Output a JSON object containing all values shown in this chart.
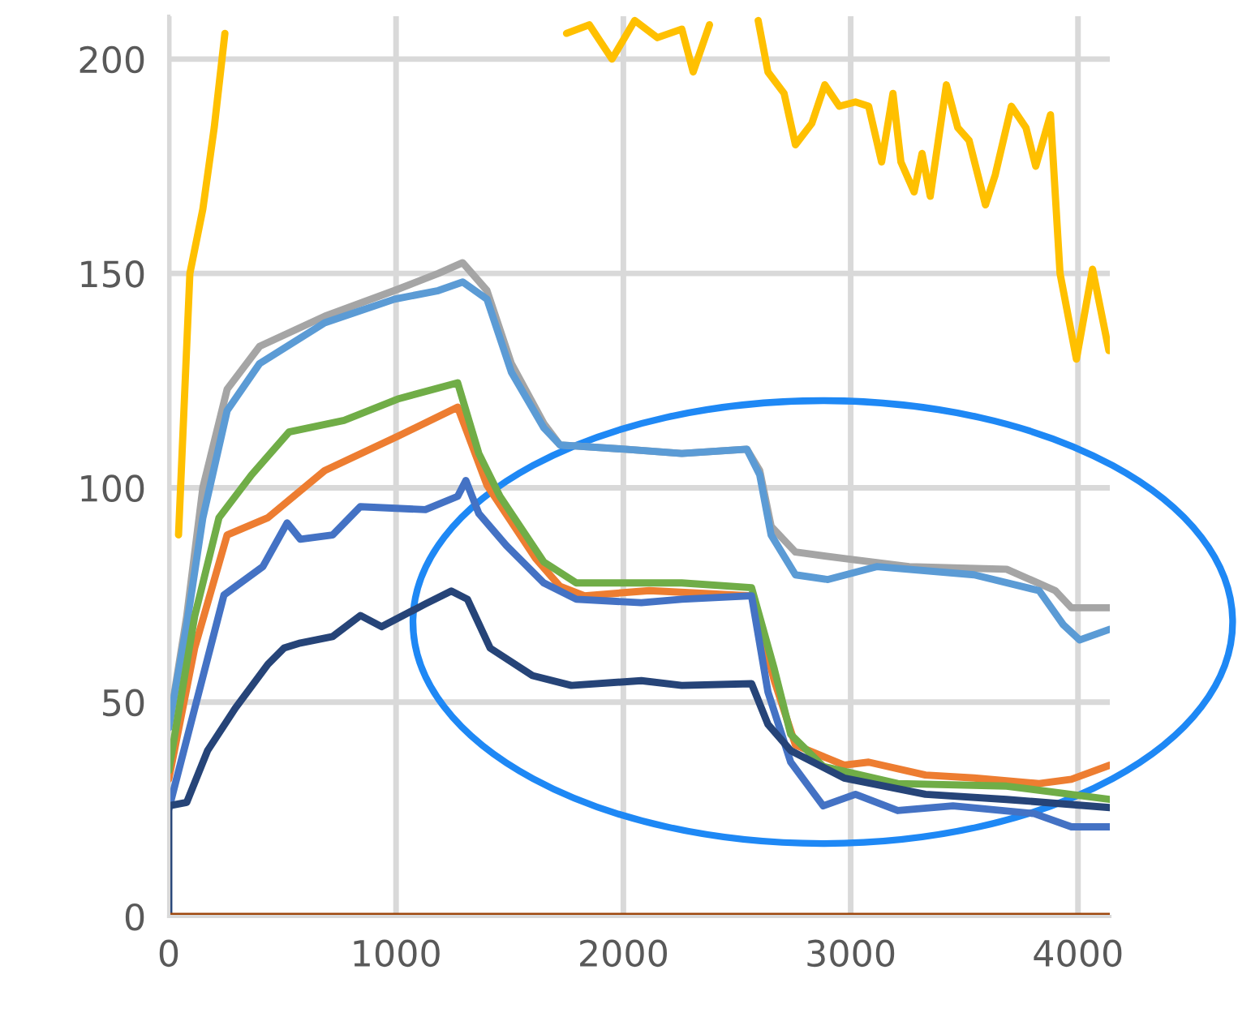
{
  "chart_data": {
    "type": "line",
    "xlim": [
      0,
      4140
    ],
    "ylim": [
      0,
      210
    ],
    "xticks": [
      0,
      1000,
      2000,
      3000,
      4000
    ],
    "yticks": [
      0,
      50,
      100,
      150,
      200
    ],
    "grid": true,
    "legend": false,
    "marker": "none",
    "line_style": "solid",
    "series": [
      {
        "color": "#ffc000",
        "x": [
          43,
          93,
          150,
          200,
          247,
          1000,
          1750,
          1850,
          1950,
          2050,
          2150,
          2257,
          2307,
          2379,
          2493,
          2593,
          2636,
          2707,
          2757,
          2829,
          2886,
          2950,
          3021,
          3079,
          3136,
          3186,
          3221,
          3279,
          3314,
          3350,
          3421,
          3471,
          3521,
          3593,
          3636,
          3707,
          3771,
          3814,
          3879,
          3921,
          3993,
          4064,
          4136
        ],
        "values": [
          89,
          150,
          165,
          184,
          206,
          null,
          206,
          208,
          200,
          209,
          205,
          207,
          197,
          208,
          null,
          209,
          197,
          192,
          180,
          185,
          194,
          189,
          190,
          189,
          176,
          192,
          176,
          169,
          178,
          168,
          194,
          184,
          181,
          166,
          173,
          189,
          184,
          175,
          187,
          150,
          130,
          151,
          132
        ]
      },
      {
        "color": "#a5a5a5",
        "x": [
          0,
          79,
          150,
          257,
          400,
          686,
          993,
          1186,
          1293,
          1400,
          1507,
          1650,
          1721,
          2007,
          2257,
          2543,
          2600,
          2650,
          2757,
          2971,
          3257,
          3686,
          3900,
          3971,
          4140
        ],
        "values": [
          44,
          70,
          100,
          123,
          133,
          140,
          146,
          150,
          152.5,
          146,
          129,
          115,
          110,
          109,
          108,
          109,
          104,
          91,
          85,
          83.5,
          81.6,
          81,
          76,
          72,
          72
        ]
      },
      {
        "color": "#5b9bd5",
        "x": [
          0,
          79,
          150,
          257,
          400,
          686,
          993,
          1186,
          1293,
          1400,
          1507,
          1650,
          1721,
          2007,
          2257,
          2543,
          2600,
          2650,
          2757,
          2900,
          3114,
          3543,
          3829,
          3936,
          4007,
          4140
        ],
        "values": [
          44,
          68,
          93,
          118,
          129,
          138.5,
          144,
          146,
          148,
          144,
          127,
          114,
          110,
          109,
          108,
          109,
          103,
          89,
          79.7,
          78.6,
          81.6,
          79.7,
          76,
          68,
          64.5,
          67
        ]
      },
      {
        "color": "#ed7d31",
        "x": [
          0,
          114,
          257,
          436,
          686,
          1007,
          1271,
          1400,
          1614,
          1721,
          1829,
          2114,
          2564,
          2664,
          2757,
          2971,
          3079,
          3329,
          3543,
          3829,
          3971,
          4140
        ],
        "values": [
          32,
          62.6,
          89,
          93,
          104,
          112,
          118.8,
          100.6,
          83.5,
          77,
          74.8,
          76,
          74.8,
          55,
          40,
          35.3,
          36,
          33,
          32.3,
          31,
          32,
          35.3
        ]
      },
      {
        "color": "#70ad47",
        "x": [
          0,
          114,
          221,
          364,
          529,
          771,
          1007,
          1271,
          1364,
          1457,
          1650,
          1793,
          2079,
          2257,
          2564,
          2664,
          2736,
          2879,
          3207,
          3686,
          4140
        ],
        "values": [
          34,
          70,
          93,
          103,
          113,
          115.7,
          120.7,
          124.5,
          108,
          98,
          82.7,
          77.8,
          77.8,
          77.8,
          76.7,
          57.7,
          42.5,
          35,
          31,
          30.4,
          27.3
        ]
      },
      {
        "color": "#4472c4",
        "x": [
          0,
          29,
          243,
          414,
          521,
          579,
          721,
          843,
          1129,
          1271,
          1307,
          1364,
          1486,
          1650,
          1793,
          2079,
          2257,
          2564,
          2636,
          2736,
          2879,
          3021,
          3207,
          3450,
          3807,
          3971,
          4140
        ],
        "values": [
          25,
          31,
          75,
          81.6,
          91.8,
          88,
          89,
          95.6,
          94.9,
          98,
          101.7,
          94,
          86.5,
          77.8,
          74,
          73.2,
          74,
          74.8,
          52.4,
          36,
          25.8,
          28.5,
          24.7,
          25.8,
          24,
          20.9,
          20.9
        ]
      },
      {
        "color": "#264478",
        "x": [
          0,
          0,
          79,
          171,
          293,
          436,
          507,
          579,
          721,
          843,
          936,
          1129,
          1243,
          1314,
          1414,
          1600,
          1771,
          2079,
          2257,
          2564,
          2636,
          2736,
          2971,
          3329,
          3686,
          4140
        ],
        "values": [
          0,
          25.8,
          26.6,
          38.7,
          48.6,
          58.8,
          62.6,
          63.8,
          65.3,
          70.2,
          67.6,
          72.9,
          75.9,
          74,
          62.6,
          56.2,
          53.9,
          55,
          53.9,
          54.3,
          44.8,
          38.7,
          32.3,
          28.5,
          27.3,
          25.4
        ]
      },
      {
        "color": "#9e480e",
        "x": [
          0,
          4140
        ],
        "values": [
          0,
          0
        ]
      }
    ]
  }
}
